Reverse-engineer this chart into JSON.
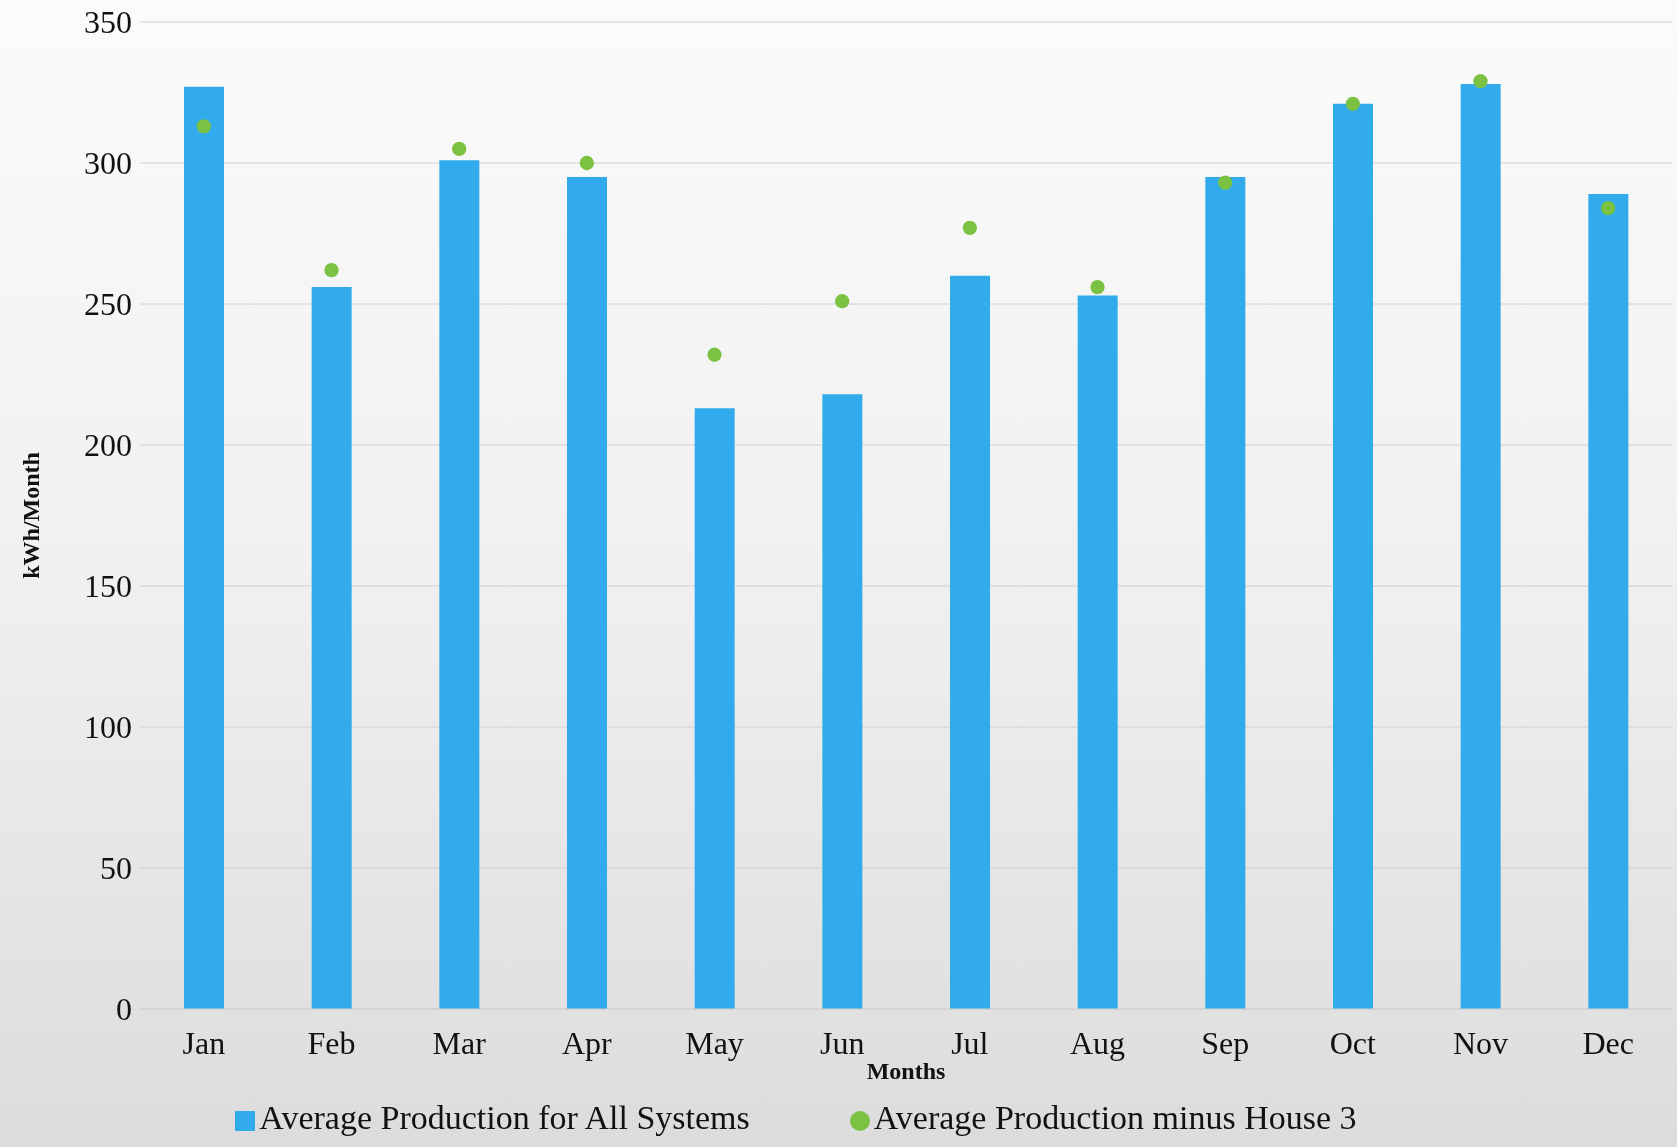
{
  "chart_data": {
    "type": "bar",
    "xlabel": "Months",
    "ylabel": "kWh/Month",
    "categories": [
      "Jan",
      "Feb",
      "Mar",
      "Apr",
      "May",
      "Jun",
      "Jul",
      "Aug",
      "Sep",
      "Oct",
      "Nov",
      "Dec"
    ],
    "series": [
      {
        "name": "Average Production for All Systems",
        "color": "#31abeb",
        "values": [
          327,
          256,
          301,
          295,
          213,
          218,
          260,
          253,
          295,
          321,
          328,
          289
        ]
      },
      {
        "name": "Average  Production minus House 3",
        "type": "scatter",
        "color": "#7cc242",
        "values": [
          313,
          262,
          305,
          300,
          232,
          251,
          277,
          256,
          293,
          321,
          329,
          284
        ]
      }
    ],
    "ylim": [
      0,
      350
    ],
    "yticks": [
      0,
      50,
      100,
      150,
      200,
      250,
      300,
      350
    ],
    "grid": "y",
    "legend": "bottom",
    "marker": "circle"
  }
}
